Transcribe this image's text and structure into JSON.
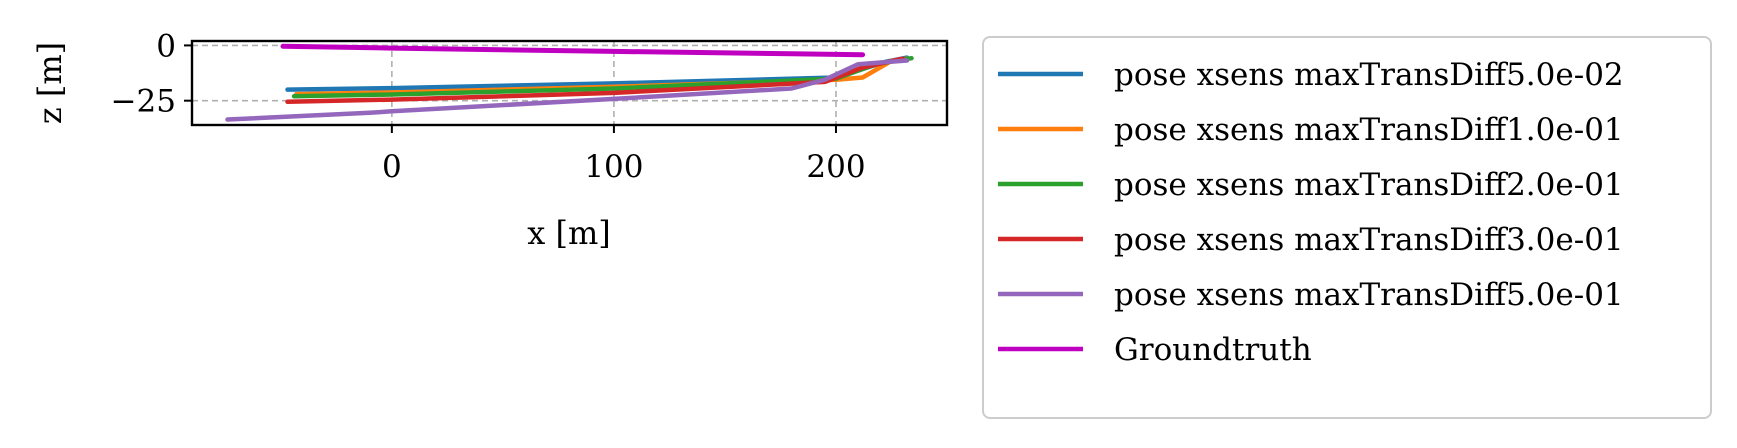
{
  "chart_data": {
    "type": "line",
    "xlabel": "x [m]",
    "ylabel": "z [m]",
    "xlim": [
      -90,
      250
    ],
    "ylim": [
      -36,
      2
    ],
    "xticks": [
      0,
      100,
      200
    ],
    "xtick_labels": [
      "0",
      "100",
      "200"
    ],
    "yticks": [
      0,
      -25
    ],
    "ytick_labels": [
      "0",
      "−25"
    ],
    "grid": true,
    "legend_position": "outside-right",
    "series": [
      {
        "name": "pose xsens maxTransDiff5.0e-02",
        "color": "#1f77b4",
        "points": [
          [
            -47,
            -20
          ],
          [
            0,
            -19.3
          ],
          [
            100,
            -17.2
          ],
          [
            200,
            -14.5
          ],
          [
            222,
            -7.5
          ],
          [
            232,
            -5.5
          ]
        ]
      },
      {
        "name": "pose xsens maxTransDiff1.0e-01",
        "color": "#ff7f0e",
        "points": [
          [
            -43,
            -22
          ],
          [
            0,
            -21.3
          ],
          [
            100,
            -18.7
          ],
          [
            200,
            -15.5
          ],
          [
            212,
            -14.5
          ],
          [
            225,
            -7
          ],
          [
            232,
            -6
          ]
        ]
      },
      {
        "name": "pose xsens maxTransDiff2.0e-01",
        "color": "#2ca02c",
        "points": [
          [
            -44,
            -23
          ],
          [
            0,
            -22.2
          ],
          [
            100,
            -19.5
          ],
          [
            200,
            -15
          ],
          [
            218,
            -8.5
          ],
          [
            234,
            -5.8
          ]
        ]
      },
      {
        "name": "pose xsens maxTransDiff3.0e-01",
        "color": "#d62728",
        "points": [
          [
            -47,
            -25.5
          ],
          [
            0,
            -24.5
          ],
          [
            100,
            -21.5
          ],
          [
            195,
            -16.5
          ],
          [
            212,
            -10
          ],
          [
            230,
            -6
          ]
        ]
      },
      {
        "name": "pose xsens maxTransDiff5.0e-01",
        "color": "#9467bd",
        "points": [
          [
            -74,
            -33.5
          ],
          [
            -10,
            -30.5
          ],
          [
            0,
            -29.8
          ],
          [
            100,
            -24.2
          ],
          [
            180,
            -19.5
          ],
          [
            195,
            -15.5
          ],
          [
            210,
            -8.5
          ],
          [
            232,
            -6.8
          ]
        ]
      },
      {
        "name": "Groundtruth",
        "color": "#c000c0",
        "points": [
          [
            -49,
            -0.4
          ],
          [
            0,
            -1.2
          ],
          [
            100,
            -2.7
          ],
          [
            180,
            -3.8
          ],
          [
            212,
            -4.2
          ]
        ]
      }
    ]
  }
}
